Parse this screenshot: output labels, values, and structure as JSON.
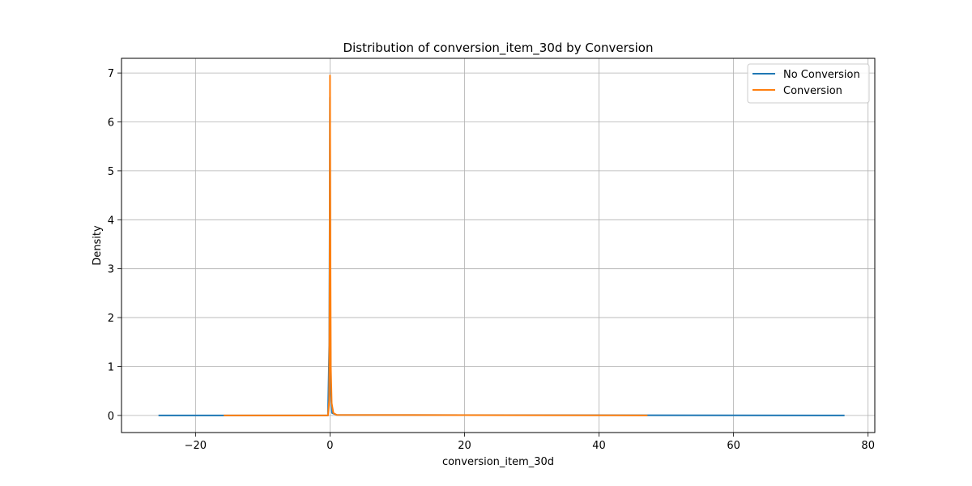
{
  "chart_data": {
    "type": "line",
    "title": "Distribution of conversion_item_30d by Conversion",
    "xlabel": "conversion_item_30d",
    "ylabel": "Density",
    "xlim": [
      -31,
      81
    ],
    "ylim": [
      -0.35,
      7.3
    ],
    "xticks": [
      -20,
      0,
      20,
      40,
      60,
      80
    ],
    "xtick_labels": [
      "−20",
      "0",
      "20",
      "40",
      "60",
      "80"
    ],
    "yticks": [
      0,
      1,
      2,
      3,
      4,
      5,
      6,
      7
    ],
    "ytick_labels": [
      "0",
      "1",
      "2",
      "3",
      "4",
      "5",
      "6",
      "7"
    ],
    "grid": true,
    "legend_position": "top-right",
    "series": [
      {
        "name": "No Conversion",
        "color": "#1f77b4",
        "x": [
          -25.5,
          -0.3,
          -0.1,
          0.0,
          0.05,
          0.1,
          0.3,
          1.0,
          76.5
        ],
        "y": [
          0,
          0,
          1.5,
          6.5,
          3.0,
          0.5,
          0.05,
          0.01,
          0
        ]
      },
      {
        "name": "Conversion",
        "color": "#ff7f0e",
        "x": [
          -15.8,
          -0.3,
          -0.12,
          -0.05,
          0.0,
          0.05,
          0.12,
          0.25,
          0.5,
          1.0,
          47.2
        ],
        "y": [
          0,
          0,
          0.3,
          3.0,
          6.95,
          4.0,
          1.0,
          0.25,
          0.05,
          0.01,
          0
        ]
      }
    ]
  }
}
